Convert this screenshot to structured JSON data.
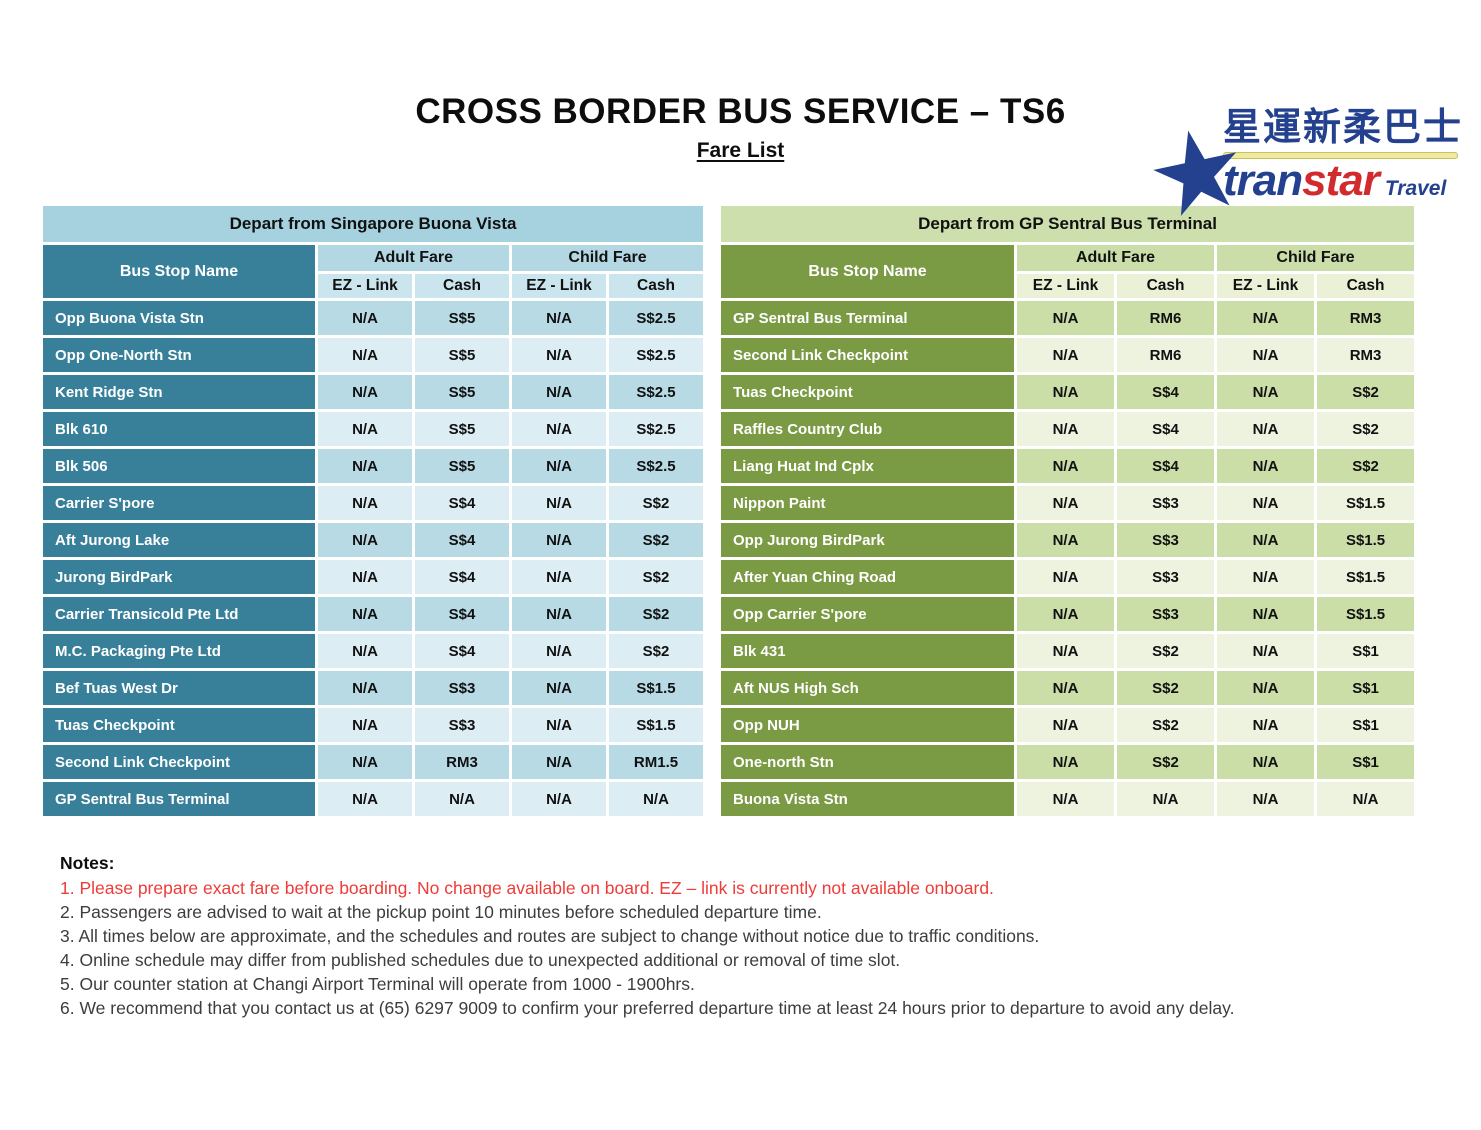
{
  "page": {
    "title": "CROSS BORDER BUS SERVICE – TS6",
    "subtitle": "Fare List"
  },
  "logo": {
    "chinese": "星運新柔巴士",
    "brand_blue": "tran",
    "brand_red": "star",
    "travel": "Travel"
  },
  "colors": {
    "brand_blue": "#24418F",
    "brand_red": "#D22B2F",
    "logo_bar_yellow": "#F0EA9F",
    "blue_name_column": "#38809A",
    "blue_banner": "#A6D2DF",
    "blue_row_odd": "#B7DAE5",
    "blue_row_even": "#DCEDF3",
    "green_name_column": "#7A9A43",
    "green_banner": "#CEDFAE",
    "green_row_odd": "#CCDEA8",
    "green_row_even": "#EDF3DF",
    "note_red": "#EE3C38"
  },
  "tables": [
    {
      "banner": "Depart from Singapore Buona Vista",
      "headers": {
        "bus_stop": "Bus Stop Name",
        "adult": "Adult Fare",
        "child": "Child Fare",
        "ez": "EZ - Link",
        "cash": "Cash"
      },
      "rows": [
        {
          "name": "Opp Buona Vista Stn",
          "fares": [
            "N/A",
            "S$5",
            "N/A",
            "S$2.5"
          ]
        },
        {
          "name": "Opp One-North Stn",
          "fares": [
            "N/A",
            "S$5",
            "N/A",
            "S$2.5"
          ]
        },
        {
          "name": "Kent Ridge Stn",
          "fares": [
            "N/A",
            "S$5",
            "N/A",
            "S$2.5"
          ]
        },
        {
          "name": "Blk 610",
          "fares": [
            "N/A",
            "S$5",
            "N/A",
            "S$2.5"
          ]
        },
        {
          "name": "Blk 506",
          "fares": [
            "N/A",
            "S$5",
            "N/A",
            "S$2.5"
          ]
        },
        {
          "name": "Carrier S'pore",
          "fares": [
            "N/A",
            "S$4",
            "N/A",
            "S$2"
          ]
        },
        {
          "name": "Aft Jurong Lake",
          "fares": [
            "N/A",
            "S$4",
            "N/A",
            "S$2"
          ]
        },
        {
          "name": "Jurong BirdPark",
          "fares": [
            "N/A",
            "S$4",
            "N/A",
            "S$2"
          ]
        },
        {
          "name": "Carrier Transicold Pte Ltd",
          "fares": [
            "N/A",
            "S$4",
            "N/A",
            "S$2"
          ]
        },
        {
          "name": "M.C. Packaging Pte Ltd",
          "fares": [
            "N/A",
            "S$4",
            "N/A",
            "S$2"
          ]
        },
        {
          "name": "Bef Tuas West Dr",
          "fares": [
            "N/A",
            "S$3",
            "N/A",
            "S$1.5"
          ]
        },
        {
          "name": "Tuas Checkpoint",
          "fares": [
            "N/A",
            "S$3",
            "N/A",
            "S$1.5"
          ]
        },
        {
          "name": "Second Link Checkpoint",
          "fares": [
            "N/A",
            "RM3",
            "N/A",
            "RM1.5"
          ]
        },
        {
          "name": "GP Sentral Bus Terminal",
          "fares": [
            "N/A",
            "N/A",
            "N/A",
            "N/A"
          ]
        }
      ]
    },
    {
      "banner": "Depart from GP Sentral Bus Terminal",
      "headers": {
        "bus_stop": "Bus Stop Name",
        "adult": "Adult Fare",
        "child": "Child Fare",
        "ez": "EZ - Link",
        "cash": "Cash"
      },
      "rows": [
        {
          "name": "GP Sentral Bus Terminal",
          "fares": [
            "N/A",
            "RM6",
            "N/A",
            "RM3"
          ]
        },
        {
          "name": "Second Link Checkpoint",
          "fares": [
            "N/A",
            "RM6",
            "N/A",
            "RM3"
          ]
        },
        {
          "name": "Tuas Checkpoint",
          "fares": [
            "N/A",
            "S$4",
            "N/A",
            "S$2"
          ]
        },
        {
          "name": "Raffles Country Club",
          "fares": [
            "N/A",
            "S$4",
            "N/A",
            "S$2"
          ]
        },
        {
          "name": "Liang Huat Ind Cplx",
          "fares": [
            "N/A",
            "S$4",
            "N/A",
            "S$2"
          ]
        },
        {
          "name": "Nippon Paint",
          "fares": [
            "N/A",
            "S$3",
            "N/A",
            "S$1.5"
          ]
        },
        {
          "name": "Opp Jurong BirdPark",
          "fares": [
            "N/A",
            "S$3",
            "N/A",
            "S$1.5"
          ]
        },
        {
          "name": "After Yuan Ching Road",
          "fares": [
            "N/A",
            "S$3",
            "N/A",
            "S$1.5"
          ]
        },
        {
          "name": "Opp Carrier S'pore",
          "fares": [
            "N/A",
            "S$3",
            "N/A",
            "S$1.5"
          ]
        },
        {
          "name": "Blk 431",
          "fares": [
            "N/A",
            "S$2",
            "N/A",
            "S$1"
          ]
        },
        {
          "name": "Aft NUS High Sch",
          "fares": [
            "N/A",
            "S$2",
            "N/A",
            "S$1"
          ]
        },
        {
          "name": "Opp NUH",
          "fares": [
            "N/A",
            "S$2",
            "N/A",
            "S$1"
          ]
        },
        {
          "name": "One-north Stn",
          "fares": [
            "N/A",
            "S$2",
            "N/A",
            "S$1"
          ]
        },
        {
          "name": "Buona Vista Stn",
          "fares": [
            "N/A",
            "N/A",
            "N/A",
            "N/A"
          ]
        }
      ]
    }
  ],
  "notes": {
    "heading": "Notes:",
    "items": [
      {
        "text": "1. Please prepare exact fare before boarding. No change available on board. EZ – link is currently not available onboard.",
        "red": true
      },
      {
        "text": "2. Passengers are advised to wait at the pickup point 10 minutes before scheduled departure time.",
        "red": false
      },
      {
        "text": "3. All times below are approximate, and the schedules and routes are subject to change without notice due to traffic conditions.",
        "red": false
      },
      {
        "text": "4. Online schedule may differ from published schedules due to unexpected additional or removal of time slot.",
        "red": false
      },
      {
        "text": "5. Our counter station at Changi Airport Terminal will operate from 1000 - 1900hrs.",
        "red": false
      },
      {
        "text": "6. We recommend that you contact us at (65) 6297 9009 to confirm your preferred departure time at least 24 hours prior to departure to avoid any delay.",
        "red": false
      }
    ]
  }
}
